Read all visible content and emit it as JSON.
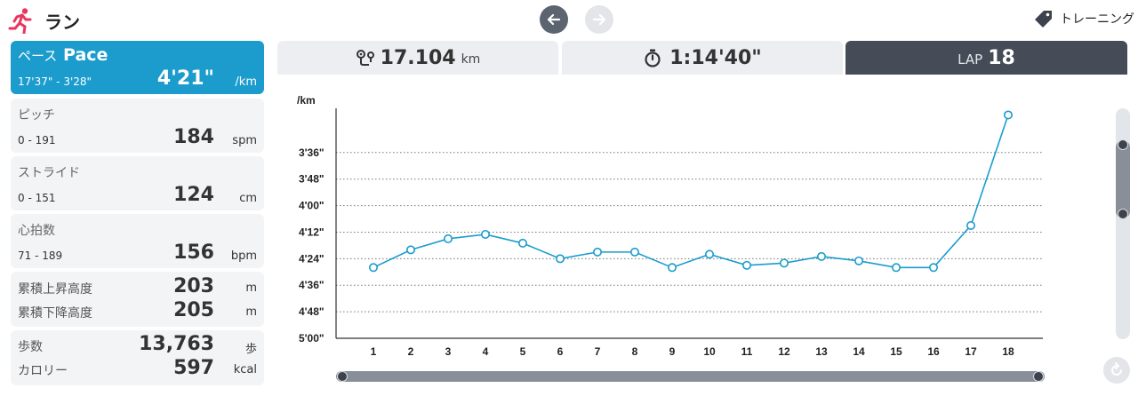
{
  "header": {
    "title": "ラン",
    "runner_icon": "runner-icon",
    "prev_icon": "arrow-left-icon",
    "next_icon": "arrow-right-icon",
    "training_label": "トレーニング",
    "training_icon": "tag-icon"
  },
  "sidebar": {
    "pace": {
      "name_jp": "ペース",
      "name_en": "Pace",
      "range": "17'37\" - 3'28\"",
      "value": "4'21\"",
      "unit": "/km"
    },
    "pitch": {
      "name": "ピッチ",
      "range": "0 - 191",
      "value": "184",
      "unit": "spm"
    },
    "stride": {
      "name": "ストライド",
      "range": "0 - 151",
      "value": "124",
      "unit": "cm"
    },
    "heart": {
      "name": "心拍数",
      "range": "71 - 189",
      "value": "156",
      "unit": "bpm"
    },
    "elevation": {
      "ascent_label": "累積上昇高度",
      "ascent_value": "203",
      "ascent_unit": "m",
      "descent_label": "累積下降高度",
      "descent_value": "205",
      "descent_unit": "m"
    },
    "activity": {
      "steps_label": "歩数",
      "steps_value": "13,763",
      "steps_unit": "歩",
      "calories_label": "カロリー",
      "calories_value": "597",
      "calories_unit": "kcal"
    }
  },
  "tabs": {
    "distance": {
      "value": "17.104",
      "unit": "km",
      "icon": "route-icon"
    },
    "time": {
      "value": "1:14'40\"",
      "icon": "stopwatch-icon"
    },
    "lap": {
      "label": "LAP",
      "value": "18"
    }
  },
  "colors": {
    "accent": "#1b9ccd",
    "line": "#1b9ccd",
    "dark_tab": "#454b57"
  },
  "chart_data": {
    "type": "line",
    "ylabel": "/km",
    "y_ticks": [
      "3'36\"",
      "3'48\"",
      "4'00\"",
      "4'12\"",
      "4'24\"",
      "4'36\"",
      "4'48\"",
      "5'00\""
    ],
    "y_tick_seconds": [
      216,
      228,
      240,
      252,
      264,
      276,
      288,
      300
    ],
    "y_axis_inverted": true,
    "ylim_seconds": [
      300,
      196
    ],
    "grid": "horizontal dotted",
    "categories": [
      "1",
      "2",
      "3",
      "4",
      "5",
      "6",
      "7",
      "8",
      "9",
      "10",
      "11",
      "12",
      "13",
      "14",
      "15",
      "16",
      "17",
      "18"
    ],
    "series": [
      {
        "values_seconds": [
          268,
          260,
          255,
          253,
          257,
          264,
          261,
          261,
          268,
          262,
          267,
          266,
          263,
          265,
          268,
          268,
          249,
          199
        ]
      }
    ]
  },
  "controls": {
    "reset_icon": "reset-icon"
  }
}
